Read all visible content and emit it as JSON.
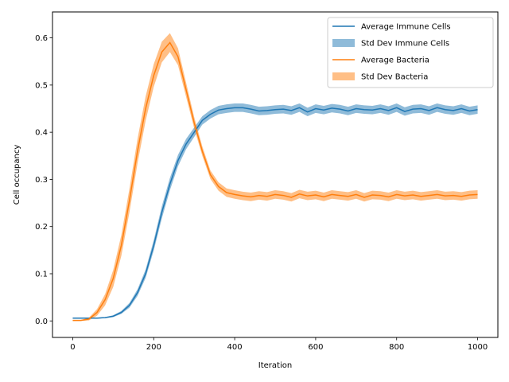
{
  "chart_data": {
    "type": "line",
    "title": "",
    "xlabel": "Iteration",
    "ylabel": "Cell occupancy",
    "xlim": [
      -50,
      1050
    ],
    "ylim": [
      -0.035,
      0.655
    ],
    "xticks": [
      0,
      200,
      400,
      600,
      800,
      1000
    ],
    "xtick_labels": [
      "0",
      "200",
      "400",
      "600",
      "800",
      "1000"
    ],
    "yticks": [
      0.0,
      0.1,
      0.2,
      0.3,
      0.4,
      0.5,
      0.6
    ],
    "ytick_labels": [
      "0.0",
      "0.1",
      "0.2",
      "0.3",
      "0.4",
      "0.5",
      "0.6"
    ],
    "grid": false,
    "legend_position": "top-right",
    "x": [
      0,
      20,
      40,
      60,
      80,
      100,
      120,
      140,
      160,
      180,
      200,
      220,
      240,
      260,
      280,
      300,
      320,
      340,
      360,
      380,
      400,
      420,
      440,
      460,
      480,
      500,
      520,
      540,
      560,
      580,
      600,
      620,
      640,
      660,
      680,
      700,
      720,
      740,
      760,
      780,
      800,
      820,
      840,
      860,
      880,
      900,
      920,
      940,
      960,
      980,
      1000
    ],
    "series": [
      {
        "name": "Average Immune Cells",
        "kind": "line",
        "color": "#1f77b4",
        "values": [
          0.006,
          0.006,
          0.006,
          0.006,
          0.007,
          0.01,
          0.018,
          0.033,
          0.06,
          0.1,
          0.16,
          0.23,
          0.29,
          0.34,
          0.375,
          0.4,
          0.425,
          0.438,
          0.447,
          0.45,
          0.452,
          0.452,
          0.449,
          0.445,
          0.446,
          0.448,
          0.449,
          0.446,
          0.452,
          0.443,
          0.45,
          0.447,
          0.451,
          0.449,
          0.445,
          0.45,
          0.448,
          0.447,
          0.45,
          0.446,
          0.452,
          0.444,
          0.449,
          0.45,
          0.446,
          0.452,
          0.448,
          0.446,
          0.45,
          0.445,
          0.448
        ]
      },
      {
        "name": "Std Dev Immune Cells",
        "kind": "band",
        "color": "#1f77b4",
        "values": [
          0.001,
          0.001,
          0.001,
          0.001,
          0.001,
          0.002,
          0.003,
          0.005,
          0.007,
          0.009,
          0.011,
          0.013,
          0.013,
          0.012,
          0.011,
          0.01,
          0.009,
          0.009,
          0.009,
          0.009,
          0.009,
          0.009,
          0.009,
          0.009,
          0.009,
          0.009,
          0.009,
          0.009,
          0.009,
          0.009,
          0.009,
          0.009,
          0.009,
          0.009,
          0.009,
          0.009,
          0.009,
          0.009,
          0.009,
          0.009,
          0.009,
          0.009,
          0.009,
          0.009,
          0.009,
          0.009,
          0.009,
          0.009,
          0.009,
          0.009,
          0.009
        ]
      },
      {
        "name": "Average Bacteria",
        "kind": "line",
        "color": "#ff7f0e",
        "values": [
          0.001,
          0.001,
          0.004,
          0.018,
          0.045,
          0.09,
          0.16,
          0.255,
          0.36,
          0.45,
          0.52,
          0.57,
          0.59,
          0.56,
          0.49,
          0.42,
          0.36,
          0.31,
          0.285,
          0.272,
          0.268,
          0.265,
          0.263,
          0.266,
          0.264,
          0.268,
          0.266,
          0.262,
          0.269,
          0.265,
          0.267,
          0.263,
          0.268,
          0.266,
          0.264,
          0.268,
          0.262,
          0.267,
          0.266,
          0.263,
          0.268,
          0.265,
          0.267,
          0.264,
          0.266,
          0.268,
          0.265,
          0.266,
          0.264,
          0.267,
          0.268
        ]
      },
      {
        "name": "Std Dev Bacteria",
        "kind": "band",
        "color": "#ff7f0e",
        "values": [
          0.001,
          0.001,
          0.003,
          0.007,
          0.012,
          0.018,
          0.022,
          0.025,
          0.026,
          0.026,
          0.024,
          0.022,
          0.02,
          0.018,
          0.015,
          0.012,
          0.01,
          0.009,
          0.009,
          0.009,
          0.009,
          0.009,
          0.009,
          0.009,
          0.009,
          0.009,
          0.009,
          0.009,
          0.009,
          0.009,
          0.009,
          0.009,
          0.009,
          0.009,
          0.009,
          0.009,
          0.009,
          0.009,
          0.009,
          0.009,
          0.009,
          0.009,
          0.009,
          0.009,
          0.009,
          0.009,
          0.009,
          0.009,
          0.009,
          0.009,
          0.009
        ]
      }
    ]
  }
}
